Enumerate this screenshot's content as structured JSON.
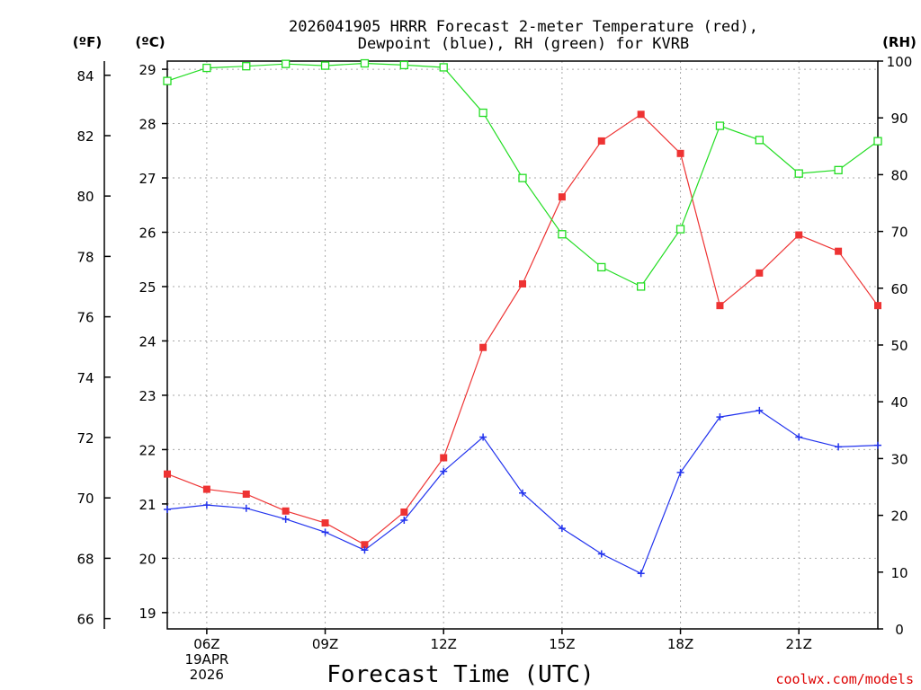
{
  "chart_data": {
    "type": "line",
    "title": [
      "2026041905 HRRR Forecast 2-meter Temperature (red),",
      "Dewpoint (blue), RH (green) for KVRB"
    ],
    "xlabel": "Forecast Time (UTC)",
    "hours": [
      5,
      6,
      7,
      8,
      9,
      10,
      11,
      12,
      13,
      14,
      15,
      16,
      17,
      18,
      19,
      20,
      21,
      22,
      23
    ],
    "x_range": [
      5,
      23
    ],
    "x_ticks": [
      {
        "hour": 6,
        "lines": [
          "06Z",
          "19APR",
          "2026"
        ]
      },
      {
        "hour": 9,
        "lines": [
          "09Z"
        ]
      },
      {
        "hour": 12,
        "lines": [
          "12Z"
        ]
      },
      {
        "hour": 15,
        "lines": [
          "15Z"
        ]
      },
      {
        "hour": 18,
        "lines": [
          "18Z"
        ]
      },
      {
        "hour": 21,
        "lines": [
          "21Z"
        ]
      }
    ],
    "celsius_axis": {
      "unit_label": "(ºC)",
      "range": [
        18.7,
        29.15
      ],
      "ticks": [
        19,
        20,
        21,
        22,
        23,
        24,
        25,
        26,
        27,
        28,
        29
      ]
    },
    "fahrenheit_axis": {
      "unit_label": "(ºF)",
      "ticks": [
        66,
        68,
        70,
        72,
        74,
        76,
        78,
        80,
        82,
        84
      ]
    },
    "rh_axis": {
      "unit_label": "(RH)",
      "range": [
        0,
        100
      ],
      "ticks": [
        0,
        10,
        20,
        30,
        40,
        50,
        60,
        70,
        80,
        90,
        100
      ]
    },
    "series": [
      {
        "name": "Temperature",
        "unit": "C",
        "color": "#ee3333",
        "marker": "filled-square",
        "values": [
          21.55,
          21.27,
          21.18,
          20.87,
          20.65,
          20.25,
          20.85,
          21.85,
          23.88,
          25.05,
          26.65,
          27.68,
          28.17,
          27.45,
          24.65,
          25.25,
          25.95,
          25.65,
          24.65
        ]
      },
      {
        "name": "Dewpoint",
        "unit": "C",
        "color": "#2233ee",
        "marker": "plus",
        "values": [
          20.9,
          20.98,
          20.92,
          20.72,
          20.48,
          20.15,
          20.7,
          21.6,
          22.23,
          21.2,
          20.55,
          20.08,
          19.72,
          21.58,
          22.6,
          22.72,
          22.23,
          22.05,
          22.08
        ]
      },
      {
        "name": "RH",
        "unit": "%",
        "color": "#22dd22",
        "marker": "open-square",
        "values": [
          96.5,
          98.8,
          99.1,
          99.5,
          99.2,
          99.6,
          99.3,
          98.9,
          90.9,
          79.4,
          69.5,
          63.7,
          60.3,
          70.4,
          88.6,
          86.1,
          80.2,
          80.8,
          85.9
        ]
      }
    ],
    "grid": true
  },
  "credit": "coolwx.com/models"
}
